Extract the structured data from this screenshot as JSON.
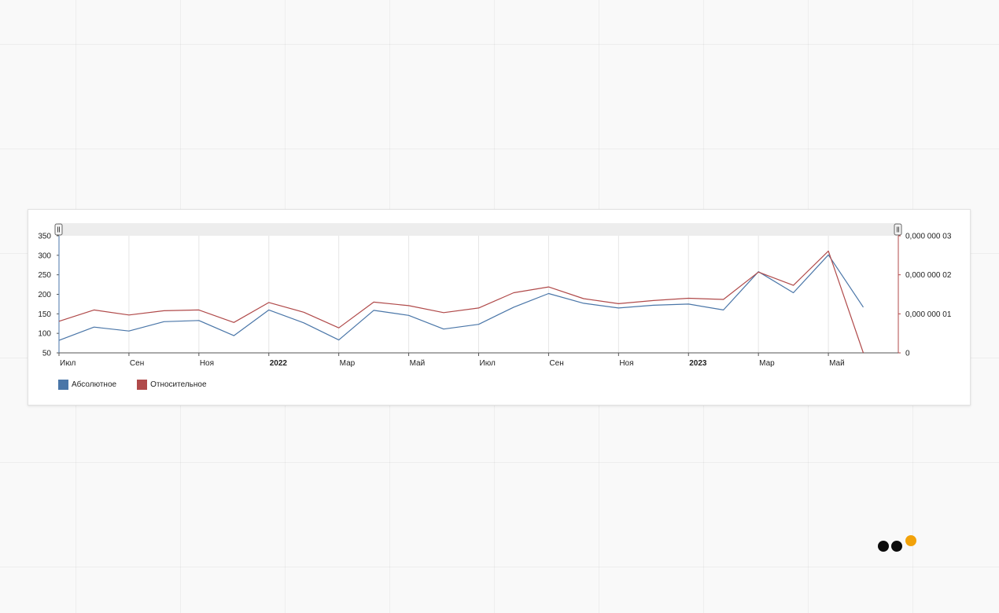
{
  "chart_data": {
    "type": "line",
    "x_ticks": [
      {
        "label": "Июл",
        "bold": false
      },
      {
        "label": "Сен",
        "bold": false
      },
      {
        "label": "Ноя",
        "bold": false
      },
      {
        "label": "2022",
        "bold": true
      },
      {
        "label": "Мар",
        "bold": false
      },
      {
        "label": "Май",
        "bold": false
      },
      {
        "label": "Июл",
        "bold": false
      },
      {
        "label": "Сен",
        "bold": false
      },
      {
        "label": "Ноя",
        "bold": false
      },
      {
        "label": "2023",
        "bold": true
      },
      {
        "label": "Мар",
        "bold": false
      },
      {
        "label": "Май",
        "bold": false
      }
    ],
    "x_start": "2021-07",
    "x_end": "2023-07",
    "y_left": {
      "min": 50,
      "max": 350,
      "ticks": [
        "350",
        "300",
        "250",
        "200",
        "150",
        "100",
        "50"
      ]
    },
    "y_right": {
      "min": 0,
      "max": 3e-08,
      "ticks": [
        {
          "label": "0,000 000 03",
          "value": 3e-08
        },
        {
          "label": "0,000 000 02",
          "value": 2e-08
        },
        {
          "label": "0,000 000 01",
          "value": 1e-08
        },
        {
          "label": "0",
          "value": 0
        }
      ]
    },
    "grid": true,
    "legend_position": "bottom-left",
    "series": [
      {
        "name": "Абсолютное",
        "color": "#4a76a8",
        "axis": "left",
        "points": [
          {
            "x": "2021-07-01",
            "y": 82
          },
          {
            "x": "2021-08-01",
            "y": 116
          },
          {
            "x": "2021-09-01",
            "y": 106
          },
          {
            "x": "2021-10-01",
            "y": 130
          },
          {
            "x": "2021-11-01",
            "y": 133
          },
          {
            "x": "2021-12-01",
            "y": 94
          },
          {
            "x": "2022-01-01",
            "y": 160
          },
          {
            "x": "2022-02-01",
            "y": 127
          },
          {
            "x": "2022-03-01",
            "y": 83
          },
          {
            "x": "2022-04-01",
            "y": 159
          },
          {
            "x": "2022-05-01",
            "y": 146
          },
          {
            "x": "2022-06-01",
            "y": 111
          },
          {
            "x": "2022-07-01",
            "y": 123
          },
          {
            "x": "2022-08-01",
            "y": 167
          },
          {
            "x": "2022-09-01",
            "y": 202
          },
          {
            "x": "2022-10-01",
            "y": 177
          },
          {
            "x": "2022-11-01",
            "y": 165
          },
          {
            "x": "2022-12-01",
            "y": 172
          },
          {
            "x": "2023-01-01",
            "y": 175
          },
          {
            "x": "2023-02-01",
            "y": 160
          },
          {
            "x": "2023-03-01",
            "y": 258
          },
          {
            "x": "2023-04-01",
            "y": 204
          },
          {
            "x": "2023-05-01",
            "y": 301
          },
          {
            "x": "2023-06-01",
            "y": 167
          }
        ]
      },
      {
        "name": "Относительное",
        "color": "#b04a4a",
        "axis": "right",
        "points": [
          {
            "x": "2021-07-01",
            "y": 8.1e-09
          },
          {
            "x": "2021-08-01",
            "y": 1.1e-08
          },
          {
            "x": "2021-09-01",
            "y": 9.7e-09
          },
          {
            "x": "2021-10-01",
            "y": 1.08e-08
          },
          {
            "x": "2021-11-01",
            "y": 1.1e-08
          },
          {
            "x": "2021-12-01",
            "y": 7.8e-09
          },
          {
            "x": "2022-01-01",
            "y": 1.29e-08
          },
          {
            "x": "2022-02-01",
            "y": 1.04e-08
          },
          {
            "x": "2022-03-01",
            "y": 6.4e-09
          },
          {
            "x": "2022-04-01",
            "y": 1.3e-08
          },
          {
            "x": "2022-05-01",
            "y": 1.21e-08
          },
          {
            "x": "2022-06-01",
            "y": 1.03e-08
          },
          {
            "x": "2022-07-01",
            "y": 1.15e-08
          },
          {
            "x": "2022-08-01",
            "y": 1.54e-08
          },
          {
            "x": "2022-09-01",
            "y": 1.69e-08
          },
          {
            "x": "2022-10-01",
            "y": 1.39e-08
          },
          {
            "x": "2022-11-01",
            "y": 1.26e-08
          },
          {
            "x": "2022-12-01",
            "y": 1.34e-08
          },
          {
            "x": "2023-01-01",
            "y": 1.4e-08
          },
          {
            "x": "2023-02-01",
            "y": 1.37e-08
          },
          {
            "x": "2023-03-01",
            "y": 2.07e-08
          },
          {
            "x": "2023-04-01",
            "y": 1.73e-08
          },
          {
            "x": "2023-05-01",
            "y": 2.61e-08
          },
          {
            "x": "2023-06-01",
            "y": 0.0
          }
        ]
      }
    ]
  },
  "colors": {
    "navigator_bg": "#ededed",
    "axis": "#555555",
    "grid": "#e6e6e6",
    "logo_dots": [
      "#0c0c0c",
      "#0c0c0c",
      "#f2a20a"
    ]
  },
  "icons": [
    "range-handle-left-icon",
    "range-handle-right-icon",
    "brand-dots-icon"
  ]
}
